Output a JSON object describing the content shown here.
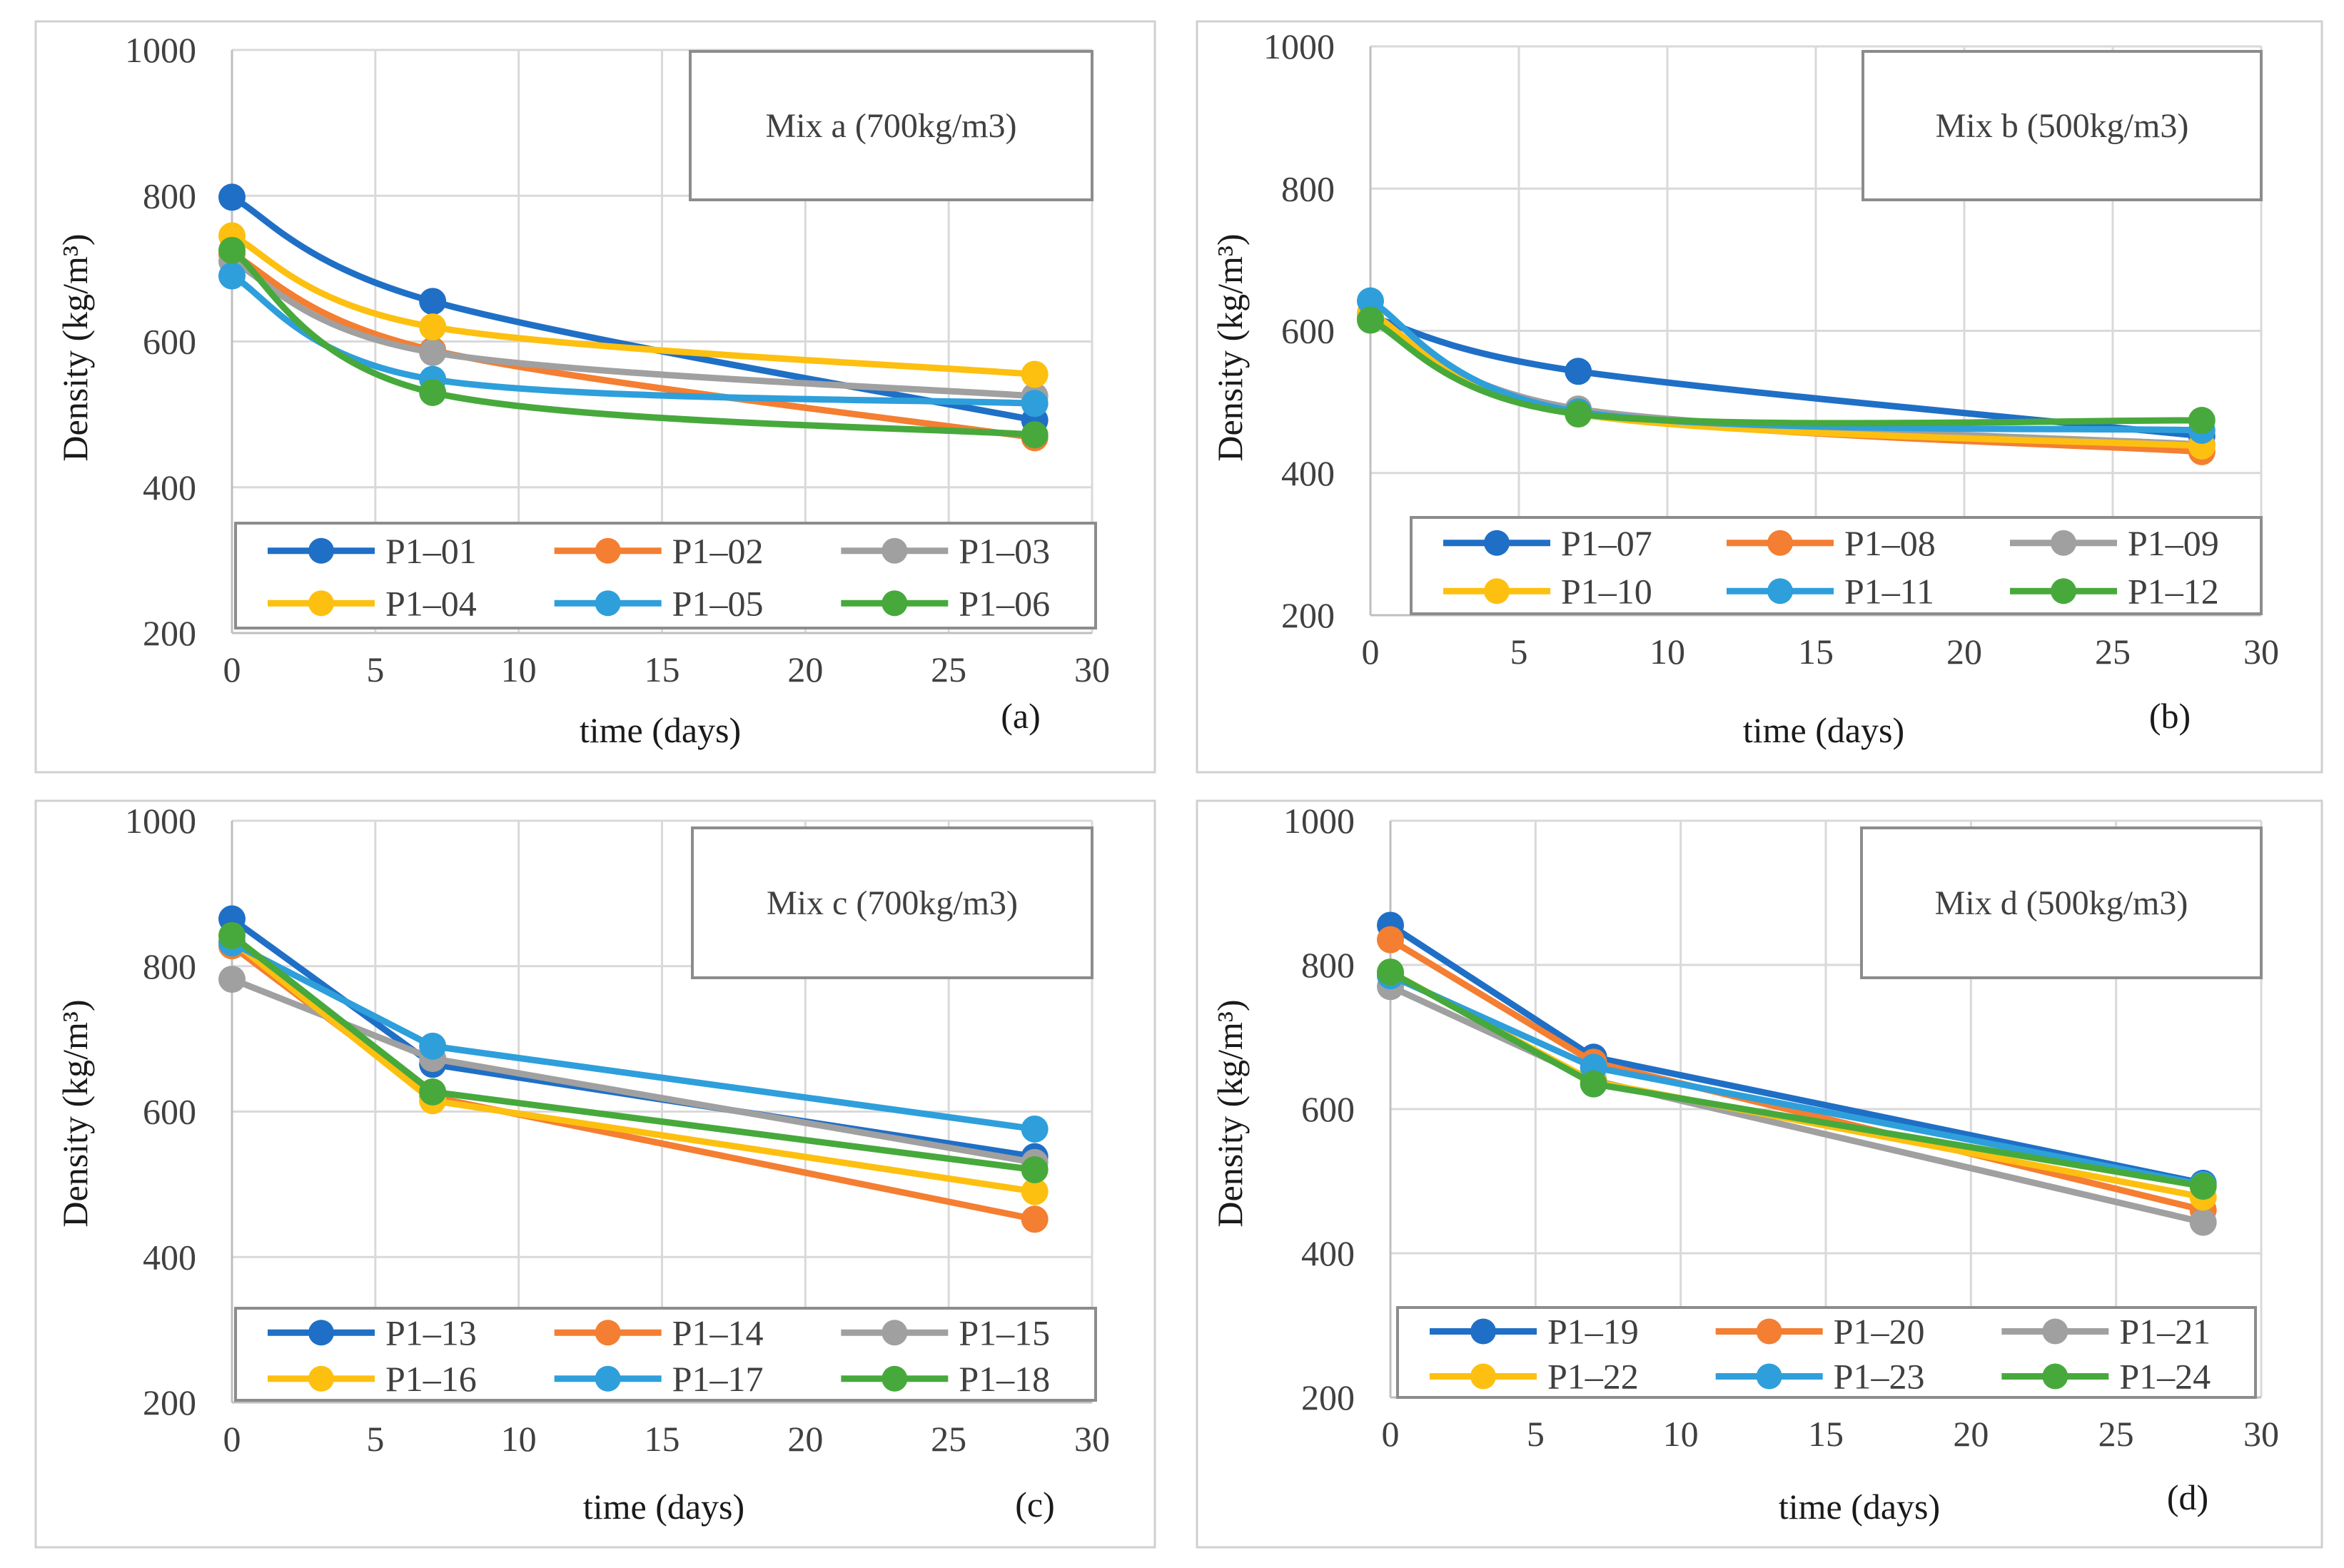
{
  "chart_data": [
    {
      "type": "line",
      "title": "Mix a (700kg/m3)",
      "panel_label": "(a)",
      "xlabel": "time (days)",
      "ylabel": "Density (kg/m³)",
      "xlim": [
        0,
        30
      ],
      "ylim": [
        200,
        1000
      ],
      "x_ticks": [
        0,
        5,
        10,
        15,
        20,
        25,
        30
      ],
      "y_ticks": [
        200,
        400,
        600,
        800,
        1000
      ],
      "legend_position": "bottom",
      "smooth": true,
      "x": [
        0,
        7,
        28
      ],
      "series": [
        {
          "name": "P1–01",
          "color": "#1F6FC6",
          "values": [
            798,
            655,
            492
          ]
        },
        {
          "name": "P1–02",
          "color": "#F47E31",
          "values": [
            720,
            588,
            468
          ]
        },
        {
          "name": "P1–03",
          "color": "#A0A0A0",
          "values": [
            710,
            585,
            525
          ]
        },
        {
          "name": "P1–04",
          "color": "#FDC010",
          "values": [
            745,
            620,
            555
          ]
        },
        {
          "name": "P1–05",
          "color": "#2E9FDB",
          "values": [
            690,
            548,
            515
          ]
        },
        {
          "name": "P1–06",
          "color": "#47A93C",
          "values": [
            725,
            530,
            472
          ]
        }
      ]
    },
    {
      "type": "line",
      "title": "Mix b (500kg/m3)",
      "panel_label": "(b)",
      "xlabel": "time (days)",
      "ylabel": "Density (kg/m³)",
      "xlim": [
        0,
        30
      ],
      "ylim": [
        200,
        1000
      ],
      "x_ticks": [
        0,
        5,
        10,
        15,
        20,
        25,
        30
      ],
      "y_ticks": [
        200,
        400,
        600,
        800,
        1000
      ],
      "legend_position": "bottom",
      "smooth": true,
      "x": [
        0,
        7,
        28
      ],
      "series": [
        {
          "name": "P1–07",
          "color": "#1F6FC6",
          "values": [
            620,
            543,
            452
          ]
        },
        {
          "name": "P1–08",
          "color": "#F47E31",
          "values": [
            618,
            485,
            430
          ]
        },
        {
          "name": "P1–09",
          "color": "#A0A0A0",
          "values": [
            622,
            490,
            440
          ]
        },
        {
          "name": "P1–10",
          "color": "#FDC010",
          "values": [
            625,
            483,
            438
          ]
        },
        {
          "name": "P1–11",
          "color": "#2E9FDB",
          "values": [
            642,
            486,
            460
          ]
        },
        {
          "name": "P1–12",
          "color": "#47A93C",
          "values": [
            615,
            483,
            474
          ]
        }
      ]
    },
    {
      "type": "line",
      "title": "Mix c (700kg/m3)",
      "panel_label": "(c)",
      "xlabel": "time (days)",
      "ylabel": "Density (kg/m³)",
      "xlim": [
        0,
        30
      ],
      "ylim": [
        200,
        1000
      ],
      "x_ticks": [
        0,
        5,
        10,
        15,
        20,
        25,
        30
      ],
      "y_ticks": [
        200,
        400,
        600,
        800,
        1000
      ],
      "legend_position": "bottom",
      "smooth": false,
      "x": [
        0,
        7,
        28
      ],
      "series": [
        {
          "name": "P1–13",
          "color": "#1F6FC6",
          "values": [
            865,
            665,
            538
          ]
        },
        {
          "name": "P1–14",
          "color": "#F47E31",
          "values": [
            828,
            620,
            452
          ]
        },
        {
          "name": "P1–15",
          "color": "#A0A0A0",
          "values": [
            782,
            673,
            530
          ]
        },
        {
          "name": "P1–16",
          "color": "#FDC010",
          "values": [
            835,
            615,
            490
          ]
        },
        {
          "name": "P1–17",
          "color": "#2E9FDB",
          "values": [
            832,
            690,
            576
          ]
        },
        {
          "name": "P1–18",
          "color": "#47A93C",
          "values": [
            842,
            627,
            520
          ]
        }
      ]
    },
    {
      "type": "line",
      "title": "Mix d (500kg/m3)",
      "panel_label": "(d)",
      "xlabel": "time (days)",
      "ylabel": "Density (kg/m³)",
      "xlim": [
        0,
        30
      ],
      "ylim": [
        200,
        1000
      ],
      "x_ticks": [
        0,
        5,
        10,
        15,
        20,
        25,
        30
      ],
      "y_ticks": [
        200,
        400,
        600,
        800,
        1000
      ],
      "legend_position": "bottom",
      "smooth": false,
      "x": [
        0,
        7,
        28
      ],
      "series": [
        {
          "name": "P1–19",
          "color": "#1F6FC6",
          "values": [
            855,
            672,
            497
          ]
        },
        {
          "name": "P1–20",
          "color": "#F47E31",
          "values": [
            835,
            665,
            460
          ]
        },
        {
          "name": "P1–21",
          "color": "#A0A0A0",
          "values": [
            770,
            640,
            443
          ]
        },
        {
          "name": "P1–22",
          "color": "#FDC010",
          "values": [
            790,
            638,
            478
          ]
        },
        {
          "name": "P1–23",
          "color": "#2E9FDB",
          "values": [
            785,
            658,
            495
          ]
        },
        {
          "name": "P1–24",
          "color": "#47A93C",
          "values": [
            790,
            635,
            493
          ]
        }
      ]
    }
  ]
}
